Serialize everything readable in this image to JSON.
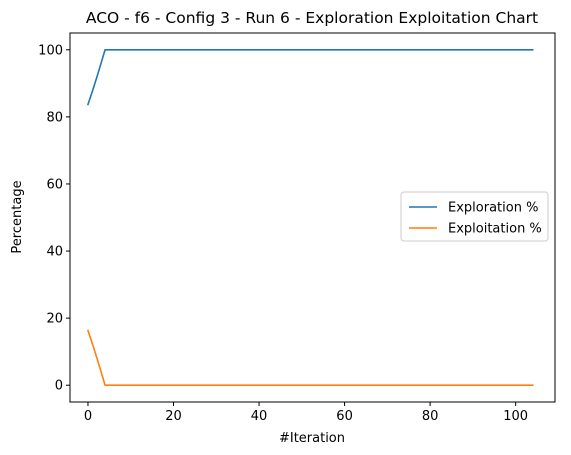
{
  "chart_data": {
    "type": "line",
    "title": "ACO - f6 - Config 3 - Run 6 - Exploration Exploitation Chart",
    "xlabel": "#Iteration",
    "ylabel": "Percentage",
    "xlim": [
      -4.2,
      109.2
    ],
    "ylim": [
      -5,
      105
    ],
    "xticks": [
      0,
      20,
      40,
      60,
      80,
      100
    ],
    "yticks": [
      0,
      20,
      40,
      60,
      80,
      100
    ],
    "grid": false,
    "legend_position": "center-right",
    "series": [
      {
        "name": "Exploration %",
        "color": "#1f77b4",
        "x": [
          0,
          1,
          2,
          3,
          4,
          104
        ],
        "y": [
          83.7,
          87.5,
          91.5,
          95.7,
          100,
          100
        ]
      },
      {
        "name": "Exploitation %",
        "color": "#ff7f0e",
        "x": [
          0,
          1,
          2,
          3,
          4,
          104
        ],
        "y": [
          16.3,
          12.5,
          8.5,
          4.3,
          0,
          0
        ]
      }
    ]
  }
}
